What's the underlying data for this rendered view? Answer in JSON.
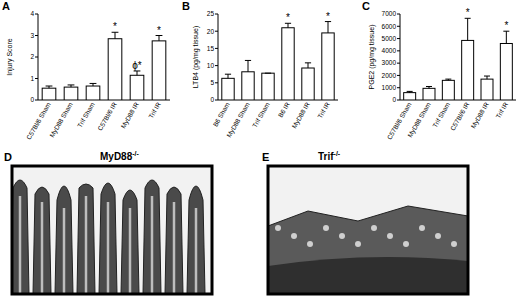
{
  "chart_data": [
    {
      "panel": "A",
      "type": "bar",
      "y_label": "Injury Score",
      "categories": [
        "C57Bl/6 Sham",
        "MyD88 Sham",
        "Trif Sham",
        "C57Bl/6 IR",
        "MyD88 IR",
        "Trif IR"
      ],
      "values": [
        0.55,
        0.6,
        0.65,
        2.85,
        1.15,
        2.75
      ],
      "errors": [
        0.1,
        0.1,
        0.12,
        0.3,
        0.2,
        0.25
      ],
      "annotations": [
        null,
        null,
        null,
        "*",
        "ϕ*",
        "*"
      ],
      "color": "#ffffff",
      "ylim": [
        0,
        4
      ],
      "yticks": [
        0,
        1,
        2,
        3,
        4
      ]
    },
    {
      "panel": "B",
      "type": "bar",
      "y_label": "LTB4 (pg/mg tissue)",
      "categories": [
        "B6 Sham",
        "MyD88 Sham",
        "Trif Sham",
        "B6 IR",
        "MyD88 IR",
        "Trif IR"
      ],
      "values": [
        6.3,
        8.2,
        7.8,
        21,
        9.3,
        19.5
      ],
      "errors": [
        1.2,
        3.3,
        0,
        1.3,
        1.5,
        3.3
      ],
      "annotations": [
        null,
        null,
        null,
        "*",
        null,
        "*"
      ],
      "color": "#ffffff",
      "ylim": [
        0,
        25
      ],
      "yticks": [
        0,
        5,
        10,
        15,
        20,
        25
      ]
    },
    {
      "panel": "C",
      "type": "bar",
      "y_label": "PGE2 (pg/mg tissue)",
      "categories": [
        "C57Bl/6 Sham",
        "MyD88 Sham",
        "Trif Sham",
        "C57Bl/6 IR",
        "MyD88 IR",
        "Trif IR"
      ],
      "values": [
        600,
        950,
        1600,
        4850,
        1700,
        4600
      ],
      "errors": [
        100,
        150,
        100,
        1800,
        250,
        1000
      ],
      "annotations": [
        null,
        null,
        null,
        "*",
        null,
        "*"
      ],
      "color": "#ffffff",
      "ylim": [
        0,
        7000
      ],
      "yticks": [
        0,
        1000,
        2000,
        3000,
        4000,
        5000,
        6000,
        7000
      ]
    }
  ],
  "images": [
    {
      "panel": "D",
      "label": "MyD88",
      "superscript": "-/-"
    },
    {
      "panel": "E",
      "label": "Trif",
      "superscript": "-/-"
    }
  ]
}
